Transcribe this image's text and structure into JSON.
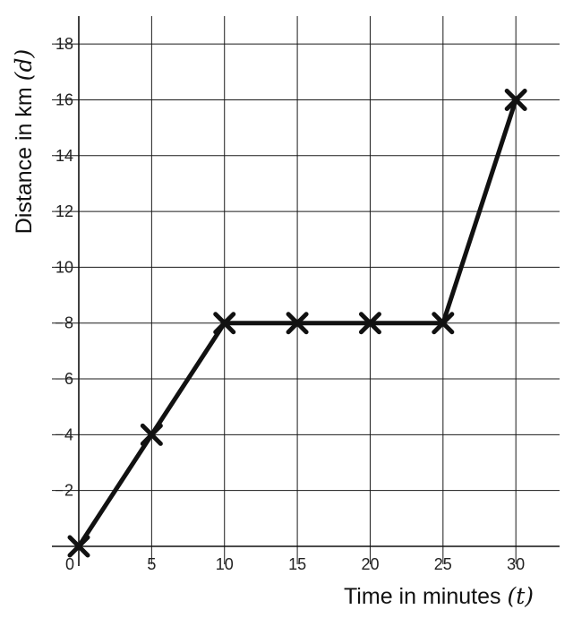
{
  "chart_data": {
    "type": "line",
    "x": [
      0,
      5,
      10,
      15,
      20,
      25,
      30
    ],
    "series": [
      {
        "values": [
          0,
          4,
          8,
          8,
          8,
          8,
          16
        ]
      }
    ],
    "xlabel": "Time in minutes",
    "xlabel_var": "(t)",
    "ylabel": "Distance in km",
    "ylabel_var": "(d)",
    "x_ticks": [
      0,
      5,
      10,
      15,
      20,
      25,
      30
    ],
    "y_ticks": [
      2,
      4,
      6,
      8,
      10,
      12,
      14,
      16,
      18
    ],
    "x_tick_labels": [
      "0",
      "5",
      "10",
      "15",
      "20",
      "25",
      "30"
    ],
    "y_tick_labels": [
      "2",
      "4",
      "6",
      "8",
      "10",
      "12",
      "14",
      "16",
      "18"
    ],
    "xlim": [
      0,
      33
    ],
    "ylim": [
      0,
      19
    ],
    "grid": true,
    "marker": "x",
    "line_color": "#111111",
    "grid_color": "#1a1a1a"
  }
}
